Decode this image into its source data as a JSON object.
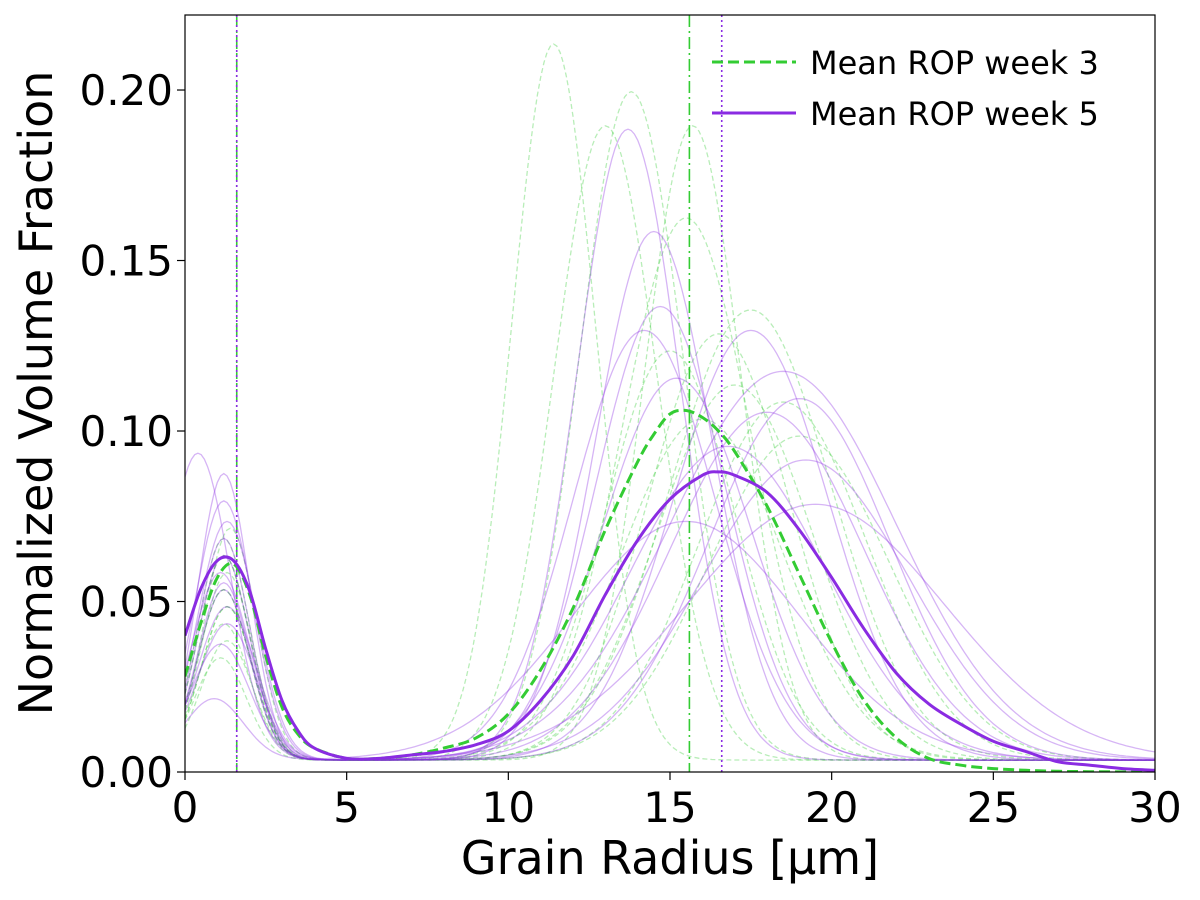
{
  "chart_data": {
    "type": "line",
    "xlabel": "Grain Radius [μm]",
    "ylabel": "Normalized Volume Fraction",
    "xlim": [
      0,
      30
    ],
    "ylim": [
      0,
      0.222
    ],
    "xticks": [
      0,
      5,
      10,
      15,
      20,
      25,
      30
    ],
    "xtick_labels": [
      "0",
      "5",
      "10",
      "15",
      "20",
      "25",
      "30"
    ],
    "yticks": [
      0.0,
      0.05,
      0.1,
      0.15,
      0.2
    ],
    "ytick_labels": [
      "0.00",
      "0.05",
      "0.10",
      "0.15",
      "0.20"
    ],
    "grid": false,
    "legend_position": "top-right",
    "colors": {
      "week3": "#33cc33",
      "week5": "#8a2be2"
    },
    "series": [
      {
        "name": "Mean ROP week 3",
        "style": "dashed",
        "x": [
          0,
          0.5,
          1,
          1.5,
          2,
          2.5,
          3,
          3.5,
          4,
          5,
          6,
          7,
          8,
          9,
          10,
          11,
          12,
          13,
          14,
          14.5,
          15,
          15.5,
          16,
          16.5,
          17,
          18,
          19,
          20,
          21,
          22,
          23,
          24,
          25,
          26,
          27,
          28,
          30
        ],
        "y": [
          0.028,
          0.044,
          0.057,
          0.061,
          0.052,
          0.034,
          0.019,
          0.011,
          0.007,
          0.004,
          0.004,
          0.005,
          0.007,
          0.01,
          0.017,
          0.03,
          0.048,
          0.071,
          0.091,
          0.099,
          0.105,
          0.106,
          0.104,
          0.1,
          0.094,
          0.078,
          0.058,
          0.038,
          0.021,
          0.01,
          0.004,
          0.002,
          0.001,
          0.0005,
          0.0002,
          0.0001,
          0.0
        ]
      },
      {
        "name": "Mean ROP week 5",
        "style": "solid",
        "x": [
          0,
          0.5,
          1,
          1.5,
          2,
          2.5,
          3,
          3.5,
          4,
          5,
          6,
          7,
          8,
          9,
          10,
          11,
          12,
          13,
          14,
          15,
          16,
          16.5,
          17,
          18,
          19,
          20,
          21,
          22,
          23,
          24,
          25,
          26,
          27,
          28,
          29,
          30
        ],
        "y": [
          0.04,
          0.054,
          0.062,
          0.062,
          0.053,
          0.036,
          0.021,
          0.012,
          0.007,
          0.004,
          0.004,
          0.005,
          0.006,
          0.008,
          0.012,
          0.021,
          0.034,
          0.052,
          0.068,
          0.08,
          0.087,
          0.088,
          0.087,
          0.082,
          0.071,
          0.057,
          0.042,
          0.029,
          0.02,
          0.014,
          0.009,
          0.006,
          0.003,
          0.002,
          0.001,
          0.0005
        ]
      }
    ],
    "vlines": [
      {
        "x": 1.6,
        "series": "Mean ROP week 3",
        "style": "dashdot"
      },
      {
        "x": 1.6,
        "series": "Mean ROP week 5",
        "style": "dotted"
      },
      {
        "x": 15.6,
        "series": "Mean ROP week 3",
        "style": "dashdot"
      },
      {
        "x": 16.6,
        "series": "Mean ROP week 5",
        "style": "dotted"
      }
    ],
    "individual_samples": {
      "week3": [
        {
          "p1": [
            1.2,
            0.06,
            0.8
          ],
          "p2": [
            11.4,
            0.21,
            1.3
          ]
        },
        {
          "p1": [
            1.3,
            0.045,
            0.8
          ],
          "p2": [
            13.0,
            0.186,
            1.6
          ]
        },
        {
          "p1": [
            1.4,
            0.068,
            0.8
          ],
          "p2": [
            13.8,
            0.196,
            1.6
          ]
        },
        {
          "p1": [
            1.1,
            0.03,
            0.8
          ],
          "p2": [
            15.7,
            0.186,
            1.5
          ]
        },
        {
          "p1": [
            1.2,
            0.05,
            0.8
          ],
          "p2": [
            15.5,
            0.159,
            2.0
          ]
        },
        {
          "p1": [
            1.2,
            0.06,
            0.8
          ],
          "p2": [
            16.5,
            0.125,
            2.2
          ]
        },
        {
          "p1": [
            1.3,
            0.055,
            0.8
          ],
          "p2": [
            17.5,
            0.132,
            2.5
          ]
        },
        {
          "p1": [
            1.2,
            0.04,
            0.8
          ],
          "p2": [
            17.0,
            0.11,
            2.4
          ]
        },
        {
          "p1": [
            1.2,
            0.065,
            0.8
          ],
          "p2": [
            18.5,
            0.105,
            2.6
          ]
        },
        {
          "p1": [
            1.3,
            0.035,
            0.8
          ],
          "p2": [
            15.0,
            0.12,
            2.0
          ]
        },
        {
          "p1": [
            1.2,
            0.05,
            0.8
          ],
          "p2": [
            16.0,
            0.1,
            2.5
          ]
        },
        {
          "p1": [
            1.3,
            0.045,
            0.8
          ],
          "p2": [
            19.0,
            0.095,
            2.8
          ]
        }
      ],
      "week5": [
        {
          "p1": [
            0.4,
            0.09,
            1.0
          ],
          "p2": [
            18.5,
            0.114,
            3.5
          ]
        },
        {
          "p1": [
            1.2,
            0.084,
            0.8
          ],
          "p2": [
            13.7,
            0.185,
            1.6
          ]
        },
        {
          "p1": [
            1.2,
            0.076,
            0.9
          ],
          "p2": [
            14.5,
            0.155,
            1.8
          ]
        },
        {
          "p1": [
            1.3,
            0.07,
            0.9
          ],
          "p2": [
            14.7,
            0.133,
            2.0
          ]
        },
        {
          "p1": [
            1.2,
            0.065,
            0.8
          ],
          "p2": [
            14.2,
            0.126,
            2.2
          ]
        },
        {
          "p1": [
            1.1,
            0.055,
            0.9
          ],
          "p2": [
            17.5,
            0.126,
            2.4
          ]
        },
        {
          "p1": [
            1.2,
            0.05,
            0.8
          ],
          "p2": [
            19.0,
            0.106,
            2.8
          ]
        },
        {
          "p1": [
            1.3,
            0.045,
            0.9
          ],
          "p2": [
            19.2,
            0.088,
            3.2
          ]
        },
        {
          "p1": [
            1.1,
            0.034,
            0.9
          ],
          "p2": [
            19.5,
            0.075,
            4.0
          ]
        },
        {
          "p1": [
            0.9,
            0.018,
            0.9
          ],
          "p2": [
            15.5,
            0.07,
            3.5
          ]
        },
        {
          "p1": [
            1.2,
            0.06,
            0.8
          ],
          "p2": [
            15.2,
            0.112,
            2.3
          ]
        },
        {
          "p1": [
            1.3,
            0.04,
            0.9
          ],
          "p2": [
            18.0,
            0.102,
            3.0
          ]
        },
        {
          "p1": [
            1.2,
            0.052,
            0.8
          ],
          "p2": [
            16.8,
            0.092,
            3.0
          ]
        }
      ]
    }
  }
}
